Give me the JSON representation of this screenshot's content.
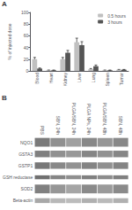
{
  "chart_data": [
    {
      "type": "bar",
      "title": "A",
      "categories": [
        "Blood",
        "Heart",
        "Kidney",
        "Liver",
        "Lung",
        "Spleen",
        "Tumor"
      ],
      "series": [
        {
          "name": "0.5 hours",
          "color": "#c0c0c0",
          "values": [
            20,
            1,
            20,
            49,
            3,
            1,
            2
          ],
          "errors": [
            3,
            0.5,
            3,
            7,
            1,
            0.5,
            0.5
          ]
        },
        {
          "name": "3 hours",
          "color": "#555555",
          "values": [
            4,
            1,
            31,
            44,
            8,
            1,
            2
          ],
          "errors": [
            1,
            0.5,
            4,
            6,
            2,
            0.5,
            0.5
          ]
        }
      ],
      "ylabel": "% of injected dose",
      "ylim": [
        0,
        100
      ],
      "yticks": [
        0,
        20,
        40,
        60,
        80,
        100
      ],
      "grid": false,
      "legend": "upper right"
    },
    {
      "type": "blot",
      "title": "B",
      "categories": [
        "PBS",
        "SBN, 24h",
        "PLGA/SBN, 24h",
        "PLGA NPs, 24h",
        "PLGA/SBN, 48h",
        "SBN, 48h"
      ],
      "series": [
        {
          "name": "NQO1",
          "colors": [
            "#7a7a7a",
            "#909090",
            "#a0a0a0",
            "#888888",
            "#969696",
            "#888888"
          ],
          "height": 1.0
        },
        {
          "name": "GSTA3",
          "colors": [
            "#808080",
            "#909090",
            "#989898",
            "#868686",
            "#929292",
            "#868686"
          ],
          "height": 0.75
        },
        {
          "name": "GSTP1",
          "colors": [
            "#787878",
            "#888888",
            "#929292",
            "#848484",
            "#909090",
            "#848484"
          ],
          "height": 0.75
        },
        {
          "name": "GSH reductase",
          "colors": [
            "#707070",
            "#858585",
            "#8f8f8f",
            "#808080",
            "#8c8c8c",
            "#808080"
          ],
          "height": 0.45
        },
        {
          "name": "SOD2",
          "colors": [
            "#808080",
            "#969696",
            "#a5a5a5",
            "#8a8a8a",
            "#9a9a9a",
            "#8a8a8a"
          ],
          "height": 1.0
        },
        {
          "name": "Beta-actin",
          "colors": [
            "#a8a8a8",
            "#b8b8b8",
            "#bcbcbc",
            "#b0b0b0",
            "#bababa",
            "#b0b0b0"
          ],
          "height": 0.55
        }
      ]
    }
  ]
}
